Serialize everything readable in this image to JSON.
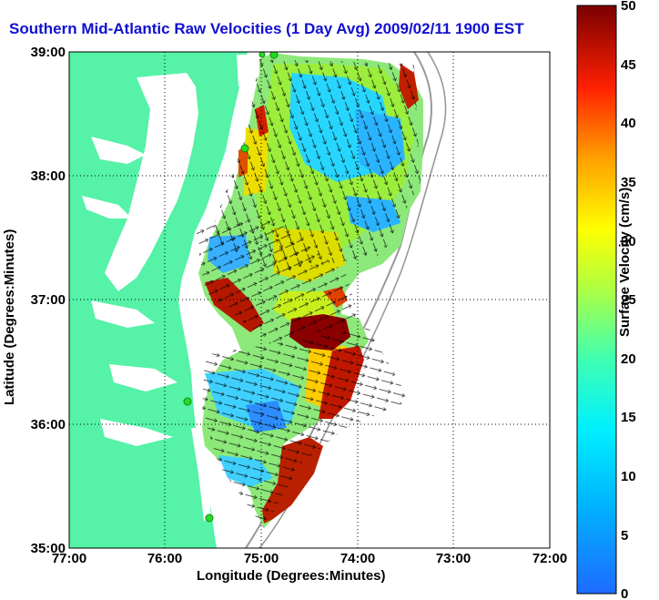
{
  "title": "Southern Mid-Atlantic Raw Velocities (1 Day Avg) 2009/02/11 1900 EST",
  "axes": {
    "xlabel": "Longitude (Degrees:Minutes)",
    "ylabel": "Latitude (Degrees:Minutes)",
    "xticks": [
      "77:00",
      "76:00",
      "75:00",
      "74:00",
      "73:00",
      "72:00"
    ],
    "yticks": [
      "39:00",
      "38:00",
      "37:00",
      "36:00",
      "35:00"
    ]
  },
  "colorbar": {
    "label": "Surface Velocity (cm/s)",
    "ticks": [
      "50",
      "45",
      "40",
      "35",
      "30",
      "25",
      "20",
      "15",
      "10",
      "5",
      "0"
    ],
    "range": [
      0,
      50
    ]
  },
  "colors": {
    "land": "#55f2a8",
    "title": "#1010d0",
    "station": "#22dd22"
  },
  "stations_count": 5
}
